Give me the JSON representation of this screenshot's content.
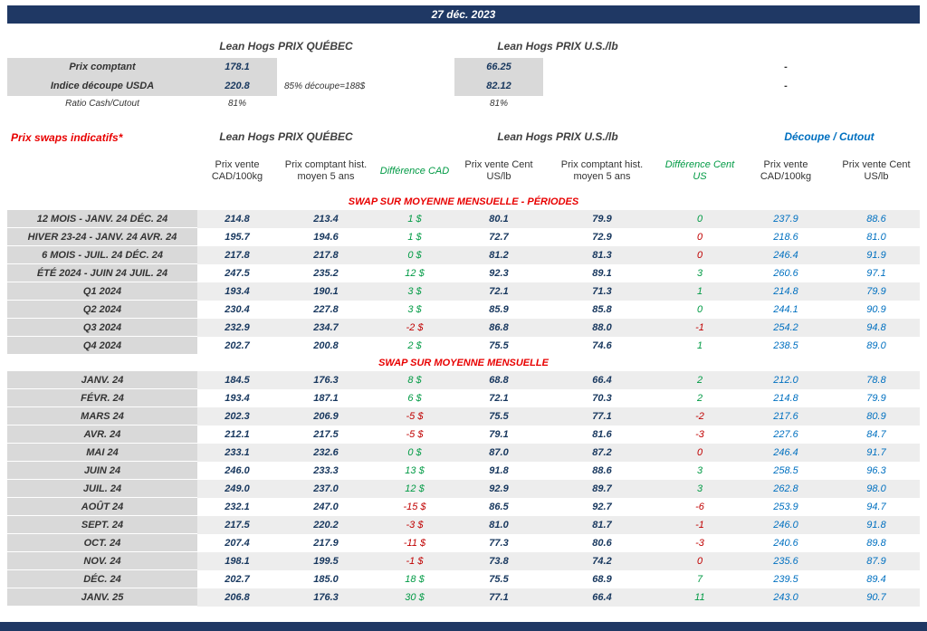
{
  "title_bar": {
    "date": "27 déc. 2023"
  },
  "colors": {
    "navy": "#1F3864",
    "value_text": "#17375E",
    "green": "#009A44",
    "red": "#C00000",
    "blue": "#0070C0",
    "section_title_red": "#E80000",
    "label_bg": "#D9D9D9",
    "stripe_bg": "#EDEDED"
  },
  "spot": {
    "quebec_title": "Lean Hogs PRIX QUÉBEC",
    "us_title": "Lean Hogs PRIX U.S./lb",
    "rows": [
      {
        "label": "Prix comptant",
        "qc": "178.1",
        "note": "",
        "us": "66.25",
        "dash": "-",
        "shaded": true
      },
      {
        "label": "Indice découpe USDA",
        "qc": "220.8",
        "note": "85% découpe=188$",
        "us": "82.12",
        "dash": "-",
        "shaded": true
      },
      {
        "label": "Ratio Cash/Cutout",
        "qc": "81%",
        "note": "",
        "us": "81%",
        "dash": "",
        "shaded": false
      }
    ]
  },
  "swaps": {
    "left_title": "Prix swaps indicatifs*",
    "quebec_title": "Lean Hogs PRIX QUÉBEC",
    "us_title": "Lean Hogs PRIX U.S./lb",
    "cutout_title": "Découpe / Cutout",
    "col_headers": [
      "Prix vente CAD/100kg",
      "Prix comptant hist. moyen 5 ans",
      "Différence CAD",
      "Prix vente Cent US/lb",
      "Prix comptant hist. moyen 5 ans",
      "Différence Cent US",
      "Prix vente CAD/100kg",
      "Prix vente Cent US/lb"
    ],
    "sections": [
      {
        "title": "SWAP SUR MOYENNE MENSUELLE - PÉRIODES",
        "rows": [
          {
            "label": "12 MOIS - JANV. 24 DÉC. 24",
            "cad": "214.8",
            "cad_hist": "213.4",
            "diff_cad": "1 $",
            "diff_cad_neg": false,
            "us": "80.1",
            "us_hist": "79.9",
            "diff_us": "0",
            "diff_us_neg": false,
            "cutout_cad": "237.9",
            "cutout_us": "88.6"
          },
          {
            "label": "HIVER 23-24 -  JANV. 24 AVR. 24",
            "cad": "195.7",
            "cad_hist": "194.6",
            "diff_cad": "1 $",
            "diff_cad_neg": false,
            "us": "72.7",
            "us_hist": "72.9",
            "diff_us": "0",
            "diff_us_neg": true,
            "cutout_cad": "218.6",
            "cutout_us": "81.0"
          },
          {
            "label": "6 MOIS -  JUIL. 24 DÉC. 24",
            "cad": "217.8",
            "cad_hist": "217.8",
            "diff_cad": "0 $",
            "diff_cad_neg": false,
            "us": "81.2",
            "us_hist": "81.3",
            "diff_us": "0",
            "diff_us_neg": true,
            "cutout_cad": "246.4",
            "cutout_us": "91.9"
          },
          {
            "label": "ÉTÉ 2024 - JUIN 24 JUIL. 24",
            "cad": "247.5",
            "cad_hist": "235.2",
            "diff_cad": "12 $",
            "diff_cad_neg": false,
            "us": "92.3",
            "us_hist": "89.1",
            "diff_us": "3",
            "diff_us_neg": false,
            "cutout_cad": "260.6",
            "cutout_us": "97.1"
          },
          {
            "label": "Q1 2024",
            "cad": "193.4",
            "cad_hist": "190.1",
            "diff_cad": "3 $",
            "diff_cad_neg": false,
            "us": "72.1",
            "us_hist": "71.3",
            "diff_us": "1",
            "diff_us_neg": false,
            "cutout_cad": "214.8",
            "cutout_us": "79.9"
          },
          {
            "label": "Q2 2024",
            "cad": "230.4",
            "cad_hist": "227.8",
            "diff_cad": "3 $",
            "diff_cad_neg": false,
            "us": "85.9",
            "us_hist": "85.8",
            "diff_us": "0",
            "diff_us_neg": false,
            "cutout_cad": "244.1",
            "cutout_us": "90.9"
          },
          {
            "label": "Q3 2024",
            "cad": "232.9",
            "cad_hist": "234.7",
            "diff_cad": "-2 $",
            "diff_cad_neg": true,
            "us": "86.8",
            "us_hist": "88.0",
            "diff_us": "-1",
            "diff_us_neg": true,
            "cutout_cad": "254.2",
            "cutout_us": "94.8"
          },
          {
            "label": "Q4 2024",
            "cad": "202.7",
            "cad_hist": "200.8",
            "diff_cad": "2 $",
            "diff_cad_neg": false,
            "us": "75.5",
            "us_hist": "74.6",
            "diff_us": "1",
            "diff_us_neg": false,
            "cutout_cad": "238.5",
            "cutout_us": "89.0"
          }
        ]
      },
      {
        "title": "SWAP SUR MOYENNE MENSUELLE",
        "rows": [
          {
            "label": "JANV. 24",
            "cad": "184.5",
            "cad_hist": "176.3",
            "diff_cad": "8 $",
            "diff_cad_neg": false,
            "us": "68.8",
            "us_hist": "66.4",
            "diff_us": "2",
            "diff_us_neg": false,
            "cutout_cad": "212.0",
            "cutout_us": "78.8"
          },
          {
            "label": "FÉVR. 24",
            "cad": "193.4",
            "cad_hist": "187.1",
            "diff_cad": "6 $",
            "diff_cad_neg": false,
            "us": "72.1",
            "us_hist": "70.3",
            "diff_us": "2",
            "diff_us_neg": false,
            "cutout_cad": "214.8",
            "cutout_us": "79.9"
          },
          {
            "label": "MARS 24",
            "cad": "202.3",
            "cad_hist": "206.9",
            "diff_cad": "-5 $",
            "diff_cad_neg": true,
            "us": "75.5",
            "us_hist": "77.1",
            "diff_us": "-2",
            "diff_us_neg": true,
            "cutout_cad": "217.6",
            "cutout_us": "80.9"
          },
          {
            "label": "AVR. 24",
            "cad": "212.1",
            "cad_hist": "217.5",
            "diff_cad": "-5 $",
            "diff_cad_neg": true,
            "us": "79.1",
            "us_hist": "81.6",
            "diff_us": "-3",
            "diff_us_neg": true,
            "cutout_cad": "227.6",
            "cutout_us": "84.7"
          },
          {
            "label": "MAI 24",
            "cad": "233.1",
            "cad_hist": "232.6",
            "diff_cad": "0 $",
            "diff_cad_neg": false,
            "us": "87.0",
            "us_hist": "87.2",
            "diff_us": "0",
            "diff_us_neg": true,
            "cutout_cad": "246.4",
            "cutout_us": "91.7"
          },
          {
            "label": "JUIN 24",
            "cad": "246.0",
            "cad_hist": "233.3",
            "diff_cad": "13 $",
            "diff_cad_neg": false,
            "us": "91.8",
            "us_hist": "88.6",
            "diff_us": "3",
            "diff_us_neg": false,
            "cutout_cad": "258.5",
            "cutout_us": "96.3"
          },
          {
            "label": "JUIL. 24",
            "cad": "249.0",
            "cad_hist": "237.0",
            "diff_cad": "12 $",
            "diff_cad_neg": false,
            "us": "92.9",
            "us_hist": "89.7",
            "diff_us": "3",
            "diff_us_neg": false,
            "cutout_cad": "262.8",
            "cutout_us": "98.0"
          },
          {
            "label": "AOÛT 24",
            "cad": "232.1",
            "cad_hist": "247.0",
            "diff_cad": "-15 $",
            "diff_cad_neg": true,
            "us": "86.5",
            "us_hist": "92.7",
            "diff_us": "-6",
            "diff_us_neg": true,
            "cutout_cad": "253.9",
            "cutout_us": "94.7"
          },
          {
            "label": "SEPT. 24",
            "cad": "217.5",
            "cad_hist": "220.2",
            "diff_cad": "-3 $",
            "diff_cad_neg": true,
            "us": "81.0",
            "us_hist": "81.7",
            "diff_us": "-1",
            "diff_us_neg": true,
            "cutout_cad": "246.0",
            "cutout_us": "91.8"
          },
          {
            "label": "OCT. 24",
            "cad": "207.4",
            "cad_hist": "217.9",
            "diff_cad": "-11 $",
            "diff_cad_neg": true,
            "us": "77.3",
            "us_hist": "80.6",
            "diff_us": "-3",
            "diff_us_neg": true,
            "cutout_cad": "240.6",
            "cutout_us": "89.8"
          },
          {
            "label": "NOV. 24",
            "cad": "198.1",
            "cad_hist": "199.5",
            "diff_cad": "-1 $",
            "diff_cad_neg": true,
            "us": "73.8",
            "us_hist": "74.2",
            "diff_us": "0",
            "diff_us_neg": true,
            "cutout_cad": "235.6",
            "cutout_us": "87.9"
          },
          {
            "label": "DÉC. 24",
            "cad": "202.7",
            "cad_hist": "185.0",
            "diff_cad": "18 $",
            "diff_cad_neg": false,
            "us": "75.5",
            "us_hist": "68.9",
            "diff_us": "7",
            "diff_us_neg": false,
            "cutout_cad": "239.5",
            "cutout_us": "89.4"
          },
          {
            "label": "JANV. 25",
            "cad": "206.8",
            "cad_hist": "176.3",
            "diff_cad": "30 $",
            "diff_cad_neg": false,
            "us": "77.1",
            "us_hist": "66.4",
            "diff_us": "11",
            "diff_us_neg": false,
            "cutout_cad": "243.0",
            "cutout_us": "90.7"
          }
        ]
      }
    ]
  }
}
